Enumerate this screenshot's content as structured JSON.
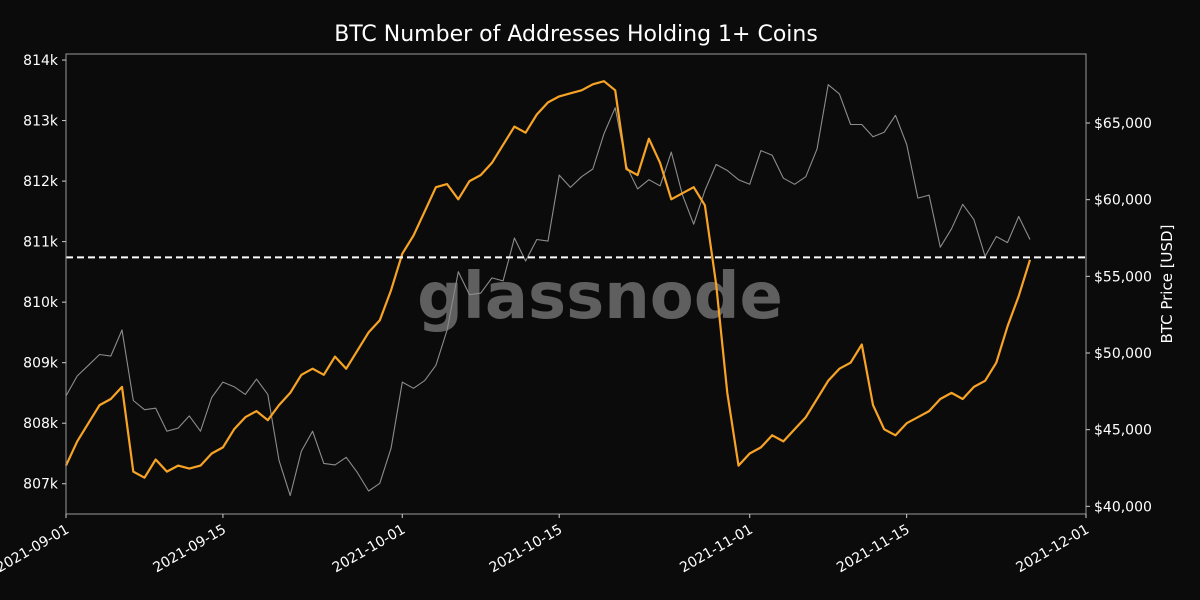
{
  "chart_data": {
    "type": "line",
    "title": "BTC Number of Addresses Holding 1+ Coins",
    "watermark": "glassnode",
    "ylabel_left": "",
    "ylabel_right": "BTC Price [USD]",
    "xlim": [
      "2021-09-01",
      "2021-12-01"
    ],
    "ylim_left": [
      806500,
      814100
    ],
    "ylim_right": [
      39500,
      69500
    ],
    "x_ticks": [
      "2021-09-01",
      "2021-09-15",
      "2021-10-01",
      "2021-10-15",
      "2021-11-01",
      "2021-11-15",
      "2021-12-01"
    ],
    "y_ticks_left": [
      {
        "value": 807000,
        "label": "807k"
      },
      {
        "value": 808000,
        "label": "808k"
      },
      {
        "value": 809000,
        "label": "809k"
      },
      {
        "value": 810000,
        "label": "810k"
      },
      {
        "value": 811000,
        "label": "811k"
      },
      {
        "value": 812000,
        "label": "812k"
      },
      {
        "value": 813000,
        "label": "813k"
      },
      {
        "value": 814000,
        "label": "814k"
      }
    ],
    "y_ticks_right": [
      {
        "value": 40000,
        "label": "$40,000"
      },
      {
        "value": 45000,
        "label": "$45,000"
      },
      {
        "value": 50000,
        "label": "$50,000"
      },
      {
        "value": 55000,
        "label": "$55,000"
      },
      {
        "value": 60000,
        "label": "$60,000"
      },
      {
        "value": 65000,
        "label": "$65,000"
      }
    ],
    "reference_line": {
      "axis": "left",
      "value": 810740,
      "style": "dashed",
      "color": "#ffffff"
    },
    "grid": false,
    "series": [
      {
        "axis": "left",
        "color": "#f7a325",
        "points": [
          [
            "2021-09-01",
            807300
          ],
          [
            "2021-09-02",
            807700
          ],
          [
            "2021-09-03",
            808000
          ],
          [
            "2021-09-04",
            808300
          ],
          [
            "2021-09-05",
            808400
          ],
          [
            "2021-09-06",
            808600
          ],
          [
            "2021-09-07",
            807200
          ],
          [
            "2021-09-08",
            807100
          ],
          [
            "2021-09-09",
            807400
          ],
          [
            "2021-09-10",
            807200
          ],
          [
            "2021-09-11",
            807300
          ],
          [
            "2021-09-12",
            807250
          ],
          [
            "2021-09-13",
            807300
          ],
          [
            "2021-09-14",
            807500
          ],
          [
            "2021-09-15",
            807600
          ],
          [
            "2021-09-16",
            807900
          ],
          [
            "2021-09-17",
            808100
          ],
          [
            "2021-09-18",
            808200
          ],
          [
            "2021-09-19",
            808050
          ],
          [
            "2021-09-20",
            808300
          ],
          [
            "2021-09-21",
            808500
          ],
          [
            "2021-09-22",
            808800
          ],
          [
            "2021-09-23",
            808900
          ],
          [
            "2021-09-24",
            808800
          ],
          [
            "2021-09-25",
            809100
          ],
          [
            "2021-09-26",
            808900
          ],
          [
            "2021-09-27",
            809200
          ],
          [
            "2021-09-28",
            809500
          ],
          [
            "2021-09-29",
            809700
          ],
          [
            "2021-09-30",
            810200
          ],
          [
            "2021-10-01",
            810800
          ],
          [
            "2021-10-02",
            811100
          ],
          [
            "2021-10-03",
            811500
          ],
          [
            "2021-10-04",
            811900
          ],
          [
            "2021-10-05",
            811950
          ],
          [
            "2021-10-06",
            811700
          ],
          [
            "2021-10-07",
            812000
          ],
          [
            "2021-10-08",
            812100
          ],
          [
            "2021-10-09",
            812300
          ],
          [
            "2021-10-10",
            812600
          ],
          [
            "2021-10-11",
            812900
          ],
          [
            "2021-10-12",
            812800
          ],
          [
            "2021-10-13",
            813100
          ],
          [
            "2021-10-14",
            813300
          ],
          [
            "2021-10-15",
            813400
          ],
          [
            "2021-10-16",
            813450
          ],
          [
            "2021-10-17",
            813500
          ],
          [
            "2021-10-18",
            813600
          ],
          [
            "2021-10-19",
            813650
          ],
          [
            "2021-10-20",
            813500
          ],
          [
            "2021-10-21",
            812200
          ],
          [
            "2021-10-22",
            812100
          ],
          [
            "2021-10-23",
            812700
          ],
          [
            "2021-10-24",
            812300
          ],
          [
            "2021-10-25",
            811700
          ],
          [
            "2021-10-26",
            811800
          ],
          [
            "2021-10-27",
            811900
          ],
          [
            "2021-10-28",
            811600
          ],
          [
            "2021-10-29",
            810300
          ],
          [
            "2021-10-30",
            808500
          ],
          [
            "2021-10-31",
            807300
          ],
          [
            "2021-11-01",
            807500
          ],
          [
            "2021-11-02",
            807600
          ],
          [
            "2021-11-03",
            807800
          ],
          [
            "2021-11-04",
            807700
          ],
          [
            "2021-11-05",
            807900
          ],
          [
            "2021-11-06",
            808100
          ],
          [
            "2021-11-07",
            808400
          ],
          [
            "2021-11-08",
            808700
          ],
          [
            "2021-11-09",
            808900
          ],
          [
            "2021-11-10",
            809000
          ],
          [
            "2021-11-11",
            809300
          ],
          [
            "2021-11-12",
            808300
          ],
          [
            "2021-11-13",
            807900
          ],
          [
            "2021-11-14",
            807800
          ],
          [
            "2021-11-15",
            808000
          ],
          [
            "2021-11-16",
            808100
          ],
          [
            "2021-11-17",
            808200
          ],
          [
            "2021-11-18",
            808400
          ],
          [
            "2021-11-19",
            808500
          ],
          [
            "2021-11-20",
            808400
          ],
          [
            "2021-11-21",
            808600
          ],
          [
            "2021-11-22",
            808700
          ],
          [
            "2021-11-23",
            809000
          ],
          [
            "2021-11-24",
            809600
          ],
          [
            "2021-11-25",
            810100
          ],
          [
            "2021-11-26",
            810700
          ]
        ]
      },
      {
        "axis": "right",
        "color": "#8c8c8c",
        "points": [
          [
            "2021-09-01",
            47200
          ],
          [
            "2021-09-02",
            48500
          ],
          [
            "2021-09-03",
            49200
          ],
          [
            "2021-09-04",
            49900
          ],
          [
            "2021-09-05",
            49800
          ],
          [
            "2021-09-06",
            51500
          ],
          [
            "2021-09-07",
            46900
          ],
          [
            "2021-09-08",
            46300
          ],
          [
            "2021-09-09",
            46400
          ],
          [
            "2021-09-10",
            44900
          ],
          [
            "2021-09-11",
            45100
          ],
          [
            "2021-09-12",
            45900
          ],
          [
            "2021-09-13",
            44900
          ],
          [
            "2021-09-14",
            47100
          ],
          [
            "2021-09-15",
            48100
          ],
          [
            "2021-09-16",
            47800
          ],
          [
            "2021-09-17",
            47300
          ],
          [
            "2021-09-18",
            48300
          ],
          [
            "2021-09-19",
            47300
          ],
          [
            "2021-09-20",
            43000
          ],
          [
            "2021-09-21",
            40700
          ],
          [
            "2021-09-22",
            43600
          ],
          [
            "2021-09-23",
            44900
          ],
          [
            "2021-09-24",
            42800
          ],
          [
            "2021-09-25",
            42700
          ],
          [
            "2021-09-26",
            43200
          ],
          [
            "2021-09-27",
            42200
          ],
          [
            "2021-09-28",
            41000
          ],
          [
            "2021-09-29",
            41500
          ],
          [
            "2021-09-30",
            43800
          ],
          [
            "2021-10-01",
            48100
          ],
          [
            "2021-10-02",
            47700
          ],
          [
            "2021-10-03",
            48200
          ],
          [
            "2021-10-04",
            49200
          ],
          [
            "2021-10-05",
            51500
          ],
          [
            "2021-10-06",
            55300
          ],
          [
            "2021-10-07",
            53800
          ],
          [
            "2021-10-08",
            53900
          ],
          [
            "2021-10-09",
            54900
          ],
          [
            "2021-10-10",
            54700
          ],
          [
            "2021-10-11",
            57500
          ],
          [
            "2021-10-12",
            56000
          ],
          [
            "2021-10-13",
            57400
          ],
          [
            "2021-10-14",
            57300
          ],
          [
            "2021-10-15",
            61600
          ],
          [
            "2021-10-16",
            60800
          ],
          [
            "2021-10-17",
            61500
          ],
          [
            "2021-10-18",
            62000
          ],
          [
            "2021-10-19",
            64300
          ],
          [
            "2021-10-20",
            66000
          ],
          [
            "2021-10-21",
            62200
          ],
          [
            "2021-10-22",
            60700
          ],
          [
            "2021-10-23",
            61300
          ],
          [
            "2021-10-24",
            60900
          ],
          [
            "2021-10-25",
            63100
          ],
          [
            "2021-10-26",
            60300
          ],
          [
            "2021-10-27",
            58400
          ],
          [
            "2021-10-28",
            60600
          ],
          [
            "2021-10-29",
            62300
          ],
          [
            "2021-10-30",
            61900
          ],
          [
            "2021-10-31",
            61300
          ],
          [
            "2021-11-01",
            61000
          ],
          [
            "2021-11-02",
            63200
          ],
          [
            "2021-11-03",
            62900
          ],
          [
            "2021-11-04",
            61400
          ],
          [
            "2021-11-05",
            61000
          ],
          [
            "2021-11-06",
            61500
          ],
          [
            "2021-11-07",
            63300
          ],
          [
            "2021-11-08",
            67500
          ],
          [
            "2021-11-09",
            66900
          ],
          [
            "2021-11-10",
            64900
          ],
          [
            "2021-11-11",
            64900
          ],
          [
            "2021-11-12",
            64100
          ],
          [
            "2021-11-13",
            64400
          ],
          [
            "2021-11-14",
            65500
          ],
          [
            "2021-11-15",
            63600
          ],
          [
            "2021-11-16",
            60100
          ],
          [
            "2021-11-17",
            60300
          ],
          [
            "2021-11-18",
            56900
          ],
          [
            "2021-11-19",
            58100
          ],
          [
            "2021-11-20",
            59700
          ],
          [
            "2021-11-21",
            58700
          ],
          [
            "2021-11-22",
            56300
          ],
          [
            "2021-11-23",
            57600
          ],
          [
            "2021-11-24",
            57200
          ],
          [
            "2021-11-25",
            58900
          ],
          [
            "2021-11-26",
            57400
          ]
        ]
      }
    ]
  }
}
